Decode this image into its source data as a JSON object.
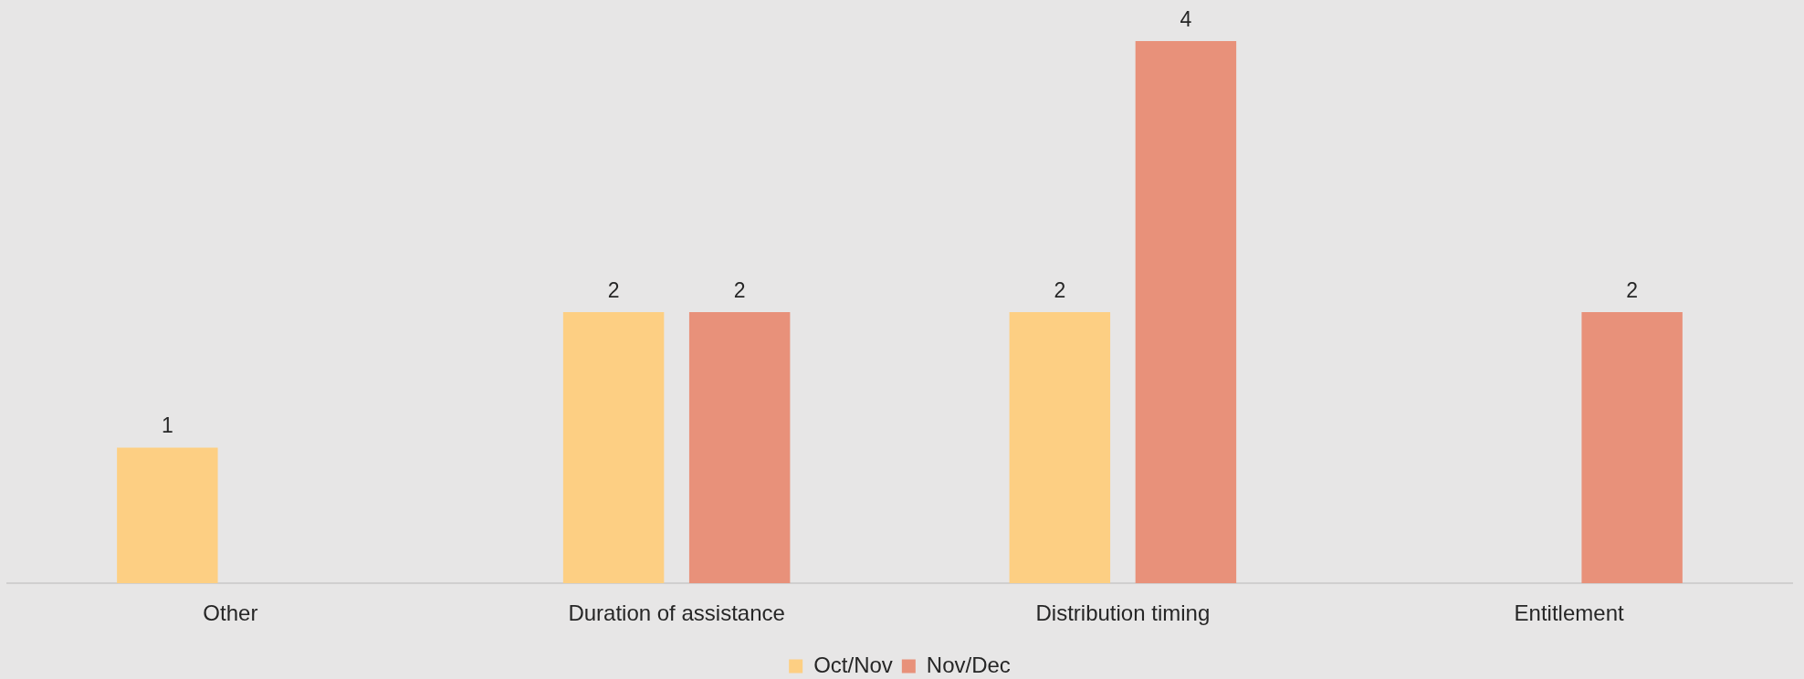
{
  "chart_data": {
    "type": "bar",
    "categories": [
      "Other",
      "Duration of assistance",
      "Distribution timing",
      "Entitlement"
    ],
    "series": [
      {
        "name": "Oct/Nov",
        "color": "#fdcf83",
        "values": [
          1,
          2,
          2,
          null
        ]
      },
      {
        "name": "Nov/Dec",
        "color": "#e8917a",
        "values": [
          null,
          2,
          4,
          2
        ]
      }
    ],
    "data_labels": true,
    "legend": "bottom"
  }
}
